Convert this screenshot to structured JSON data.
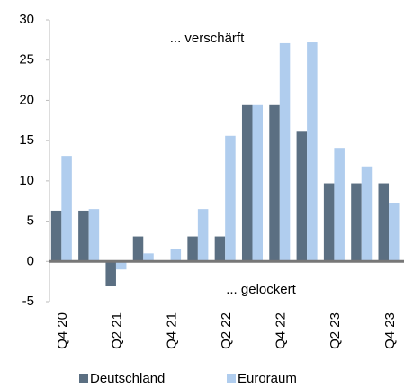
{
  "chart_data": {
    "type": "bar",
    "categories": [
      "Q4 20",
      null,
      "Q2 21",
      null,
      "Q4 21",
      null,
      "Q2 22",
      null,
      "Q4 22",
      null,
      "Q2 23",
      null,
      "Q4 23"
    ],
    "series": [
      {
        "name": "Deutschland",
        "color": "#5b6f82",
        "values": [
          6.3,
          6.3,
          -3.1,
          3.1,
          0,
          3.1,
          3.1,
          19.4,
          19.4,
          16.1,
          9.7,
          9.7,
          9.7
        ]
      },
      {
        "name": "Euroraum",
        "color": "#b0cdee",
        "values": [
          13.1,
          6.5,
          -1.0,
          1.0,
          1.5,
          6.5,
          15.6,
          19.4,
          27.1,
          27.2,
          14.1,
          11.8,
          7.3
        ]
      }
    ],
    "annotations": [
      "... verschärft",
      "... gelockert"
    ],
    "ylim": [
      -5,
      30
    ],
    "yticks": [
      -5,
      0,
      5,
      10,
      15,
      20,
      25,
      30
    ],
    "grid": false,
    "legend": "bottom"
  }
}
